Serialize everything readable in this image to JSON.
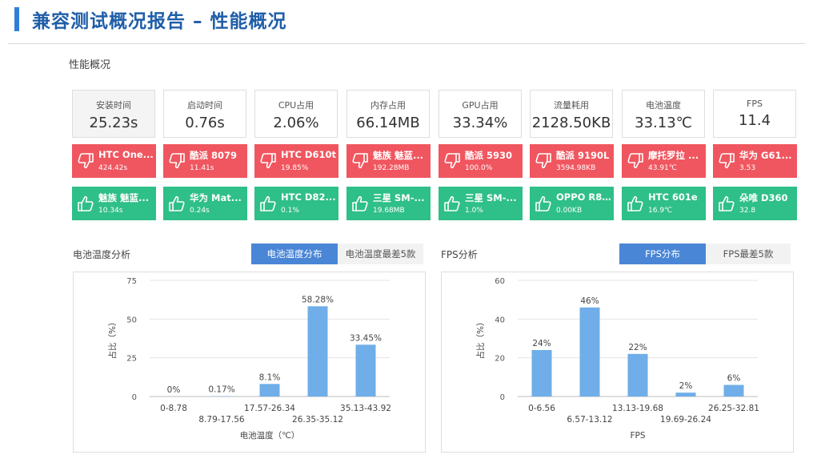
{
  "header": {
    "title": "兼容测试概况报告 – 性能概况"
  },
  "section_title": "性能概况",
  "metrics": [
    {
      "label": "安装时间",
      "value": "25.23s"
    },
    {
      "label": "启动时间",
      "value": "0.76s"
    },
    {
      "label": "CPU占用",
      "value": "2.06%"
    },
    {
      "label": "内存占用",
      "value": "66.14MB"
    },
    {
      "label": "GPU占用",
      "value": "33.34%"
    },
    {
      "label": "流量耗用",
      "value": "2128.50KB"
    },
    {
      "label": "电池温度",
      "value": "33.13℃"
    },
    {
      "label": "FPS",
      "value": "11.4"
    }
  ],
  "worst_devices": [
    {
      "name": "HTC One...",
      "value": "424.42s"
    },
    {
      "name": "酷派 8079",
      "value": "11.41s"
    },
    {
      "name": "HTC D610t",
      "value": "19.85%"
    },
    {
      "name": "魅族 魅蓝...",
      "value": "192.28MB"
    },
    {
      "name": "酷派 5930",
      "value": "100.0%"
    },
    {
      "name": "酷派 9190L",
      "value": "3594.98KB"
    },
    {
      "name": "摩托罗拉 ...",
      "value": "43.91℃"
    },
    {
      "name": "华为 G61...",
      "value": "3.53"
    }
  ],
  "best_devices": [
    {
      "name": "魅族 魅蓝...",
      "value": "10.34s"
    },
    {
      "name": "华为 Mat...",
      "value": "0.24s"
    },
    {
      "name": "HTC D82...",
      "value": "0.1%"
    },
    {
      "name": "三星 SM-...",
      "value": "19.68MB"
    },
    {
      "name": "三星 SM-...",
      "value": "1.0%"
    },
    {
      "name": "OPPO R8...",
      "value": "0.00KB"
    },
    {
      "name": "HTC 601e",
      "value": "16.9℃"
    },
    {
      "name": "朵唯 D360",
      "value": "32.8"
    }
  ],
  "colors": {
    "red": "#f0565f",
    "green": "#2fbf88",
    "accent": "#4a86d6",
    "bar": "#6faee8"
  },
  "icons": {
    "bad": "thumbs-down-icon",
    "good": "thumbs-up-icon"
  },
  "battery": {
    "title": "电池温度分析",
    "tab_active": "电池温度分布",
    "tab_other": "电池温度最差5款"
  },
  "fps": {
    "title": "FPS分析",
    "tab_active": "FPS分布",
    "tab_other": "FPS最差5款"
  },
  "chart_data": [
    {
      "type": "bar",
      "categories": [
        "0-8.78",
        "8.79-17.56",
        "17.57-26.34",
        "26.35-35.12",
        "35.13-43.92"
      ],
      "values": [
        0,
        0.17,
        8.1,
        58.28,
        33.45
      ],
      "data_labels": [
        "0%",
        "0.17%",
        "8.1%",
        "58.28%",
        "33.45%"
      ],
      "ylabel": "占比（%）",
      "xlabel": "电池温度（℃）",
      "ylim": [
        0,
        75
      ],
      "yticks": [
        0,
        25,
        50,
        75
      ],
      "grid": true
    },
    {
      "type": "bar",
      "categories": [
        "0-6.56",
        "6.57-13.12",
        "13.13-19.68",
        "19.69-26.24",
        "26.25-32.81"
      ],
      "values": [
        24,
        46,
        22,
        2,
        6
      ],
      "data_labels": [
        "24%",
        "46%",
        "22%",
        "2%",
        "6%"
      ],
      "ylabel": "占比（%）",
      "xlabel": "FPS",
      "ylim": [
        0,
        60
      ],
      "yticks": [
        0,
        20,
        40,
        60
      ],
      "grid": true
    }
  ]
}
